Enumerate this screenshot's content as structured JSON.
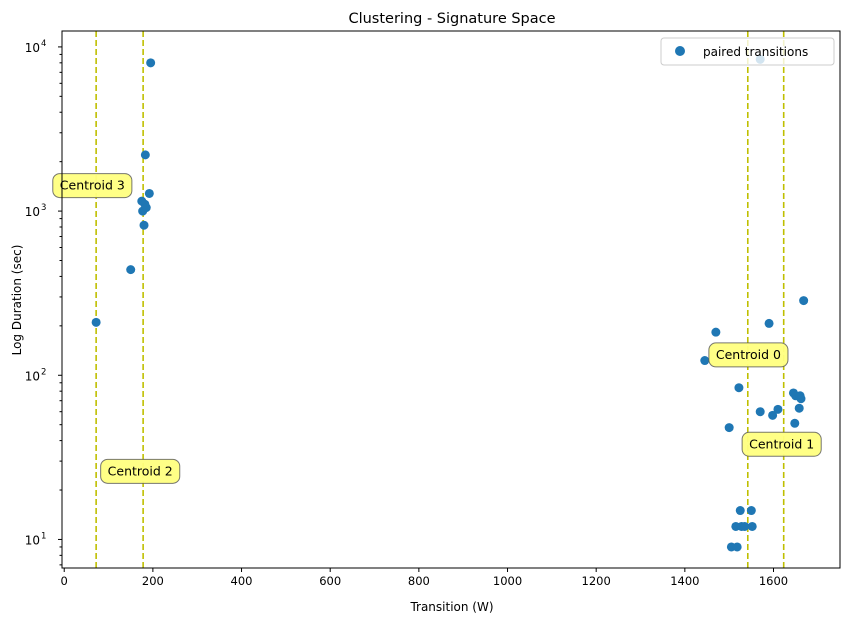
{
  "chart_data": {
    "type": "scatter",
    "title": "Clustering -  Signature Space",
    "xlabel": "Transition (W)",
    "ylabel": "Log Duration (sec)",
    "xlim": [
      -5,
      1750
    ],
    "ylim": [
      6.7,
      12500
    ],
    "yscale": "log",
    "grid": false,
    "legend": {
      "placement": "top-right",
      "label": "paired transitions"
    },
    "x_ticks": [
      "0",
      "200",
      "400",
      "600",
      "800",
      "1000",
      "1200",
      "1400",
      "1600"
    ],
    "y_ticks": [
      {
        "value": 10,
        "base": "10",
        "exp": "1"
      },
      {
        "value": 100,
        "base": "10",
        "exp": "2"
      },
      {
        "value": 1000,
        "base": "10",
        "exp": "3"
      },
      {
        "value": 10000,
        "base": "10",
        "exp": "4"
      }
    ],
    "series": [
      {
        "color": "#1f77b4",
        "points": [
          [
            72,
            210
          ],
          [
            150,
            440
          ],
          [
            175,
            1150
          ],
          [
            177,
            1000
          ],
          [
            180,
            820
          ],
          [
            182,
            1100
          ],
          [
            183,
            2200
          ],
          [
            185,
            1050
          ],
          [
            192,
            1280
          ],
          [
            195,
            8000
          ],
          [
            1445,
            123
          ],
          [
            1470,
            183
          ],
          [
            1500,
            48
          ],
          [
            1505,
            9
          ],
          [
            1515,
            12
          ],
          [
            1518,
            9
          ],
          [
            1522,
            84
          ],
          [
            1525,
            15
          ],
          [
            1528,
            12
          ],
          [
            1535,
            12
          ],
          [
            1550,
            15
          ],
          [
            1552,
            12
          ],
          [
            1570,
            60
          ],
          [
            1570,
            8400
          ],
          [
            1590,
            207
          ],
          [
            1598,
            57
          ],
          [
            1610,
            62
          ],
          [
            1645,
            78
          ],
          [
            1648,
            51
          ],
          [
            1650,
            75
          ],
          [
            1658,
            63
          ],
          [
            1660,
            75
          ],
          [
            1662,
            72
          ],
          [
            1668,
            285
          ]
        ]
      }
    ],
    "centroids": [
      {
        "x": 1542,
        "label": "Centroid 0",
        "label_at": [
          1470,
          133
        ]
      },
      {
        "x": 1623,
        "label": "Centroid 1",
        "label_at": [
          1545,
          38
        ]
      },
      {
        "x": 72,
        "label": "Centroid 2",
        "label_at": [
          98,
          26
        ]
      },
      {
        "x": 178,
        "label": "Centroid 3",
        "label_at": [
          -10,
          1430
        ]
      }
    ],
    "colors": {
      "centroid_line": "#bfbf00",
      "annotation_fill": "#ffff80",
      "marker": "#1f77b4"
    }
  }
}
